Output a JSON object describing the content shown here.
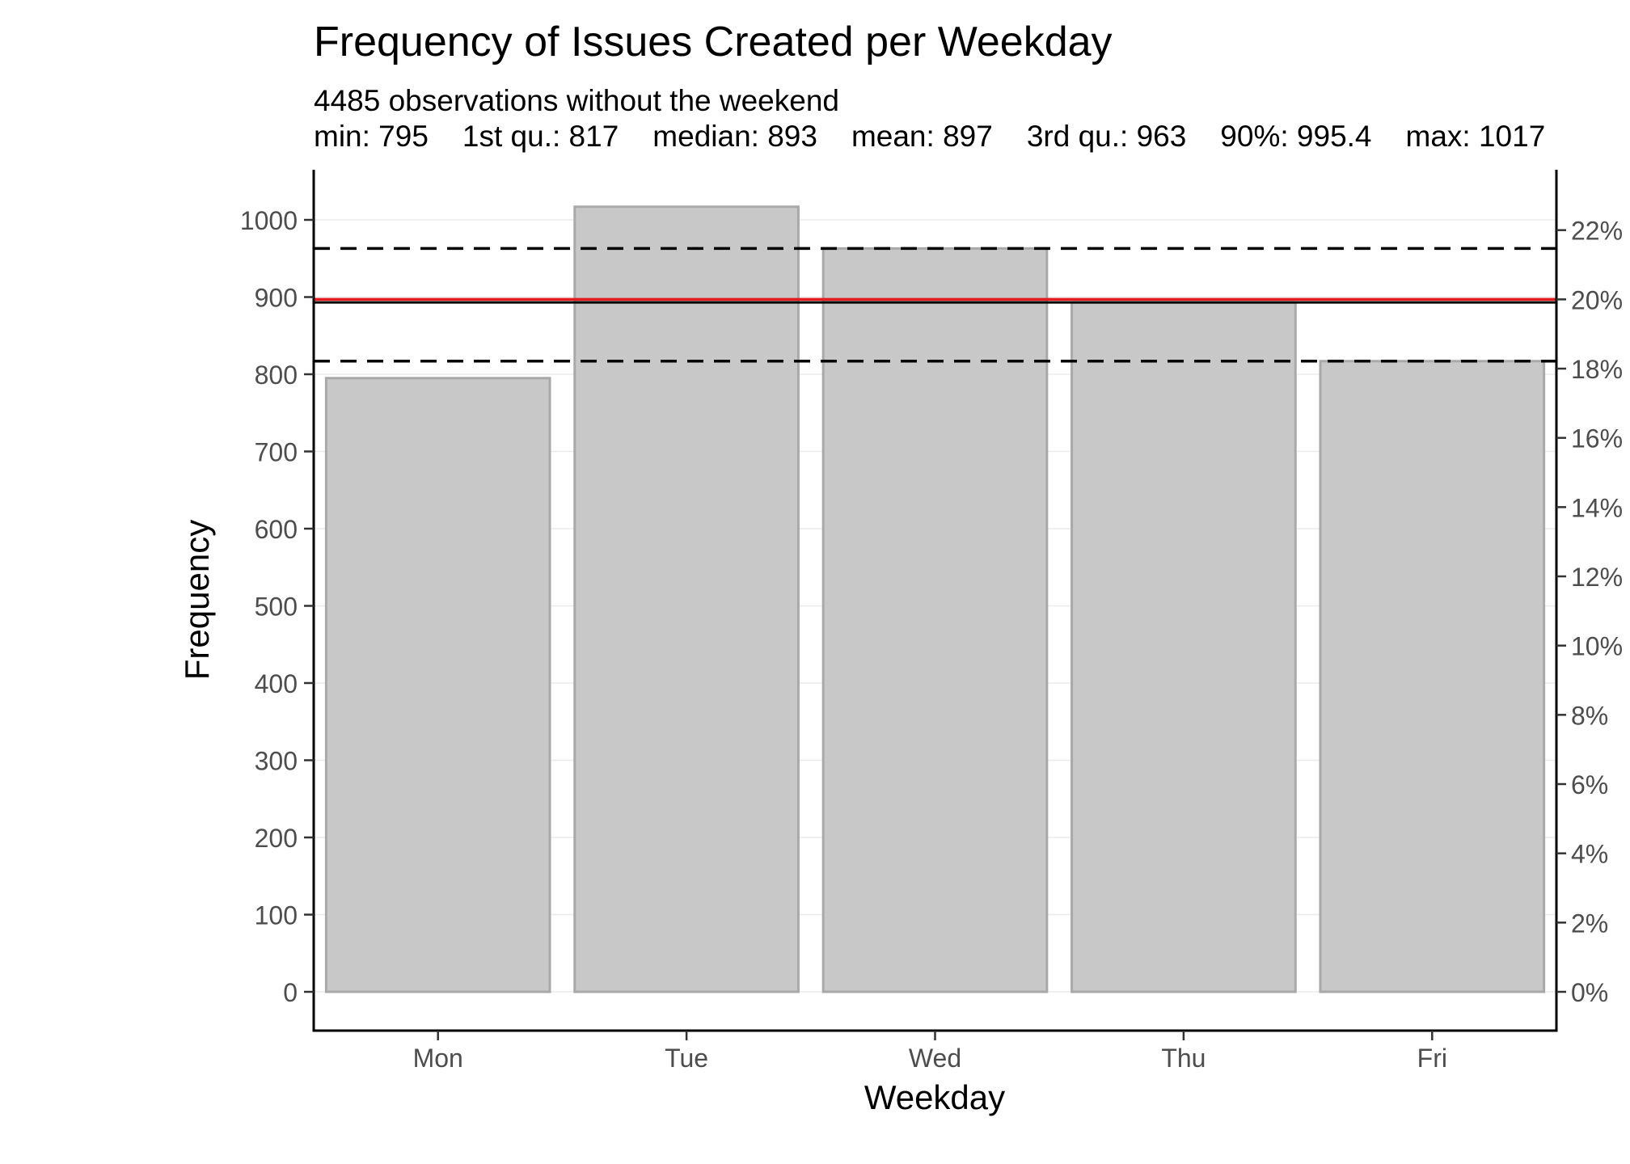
{
  "chart_data": {
    "type": "bar",
    "title": "Frequency of Issues Created per Weekday",
    "subtitle": "4485 observations without the weekend",
    "summary_stats": [
      "min: 795",
      "1st qu.: 817",
      "median: 893",
      "mean: 897",
      "3rd qu.: 963",
      "90%: 995.4",
      "max: 1017"
    ],
    "xlabel": "Weekday",
    "ylabel": "Frequency",
    "categories": [
      "Mon",
      "Tue",
      "Wed",
      "Thu",
      "Fri"
    ],
    "values": [
      795,
      1017,
      963,
      893,
      817
    ],
    "ylim": [
      -50,
      1065
    ],
    "yticks": [
      0,
      100,
      200,
      300,
      400,
      500,
      600,
      700,
      800,
      900,
      1000
    ],
    "secondary_axis": {
      "ticks": [
        0,
        2,
        4,
        6,
        8,
        10,
        12,
        14,
        16,
        18,
        20,
        22
      ],
      "labels": [
        "0%",
        "2%",
        "4%",
        "6%",
        "8%",
        "10%",
        "12%",
        "14%",
        "16%",
        "18%",
        "20%",
        "22%"
      ],
      "total": 4485
    },
    "reference_lines": [
      {
        "stat": "1st qu.",
        "value": 817,
        "style": "dashed",
        "color": "#000000"
      },
      {
        "stat": "3rd qu.",
        "value": 963,
        "style": "dashed",
        "color": "#000000"
      },
      {
        "stat": "median",
        "value": 893,
        "style": "solid",
        "color": "#000000"
      },
      {
        "stat": "mean",
        "value": 897,
        "style": "solid",
        "color": "#e41a1c"
      }
    ],
    "bar_fill": "#c8c8c8",
    "bar_stroke": "#a9a9a9",
    "grid": true
  }
}
